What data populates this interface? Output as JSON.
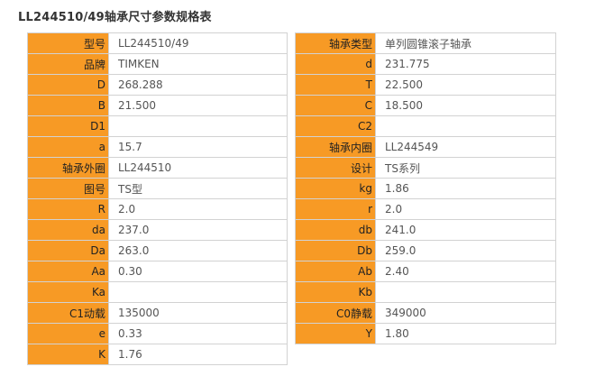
{
  "title": "LL244510/49轴承尺寸参数规格表",
  "colors": {
    "label_bg": "#f79a25",
    "value_bg": "#ffffff",
    "border": "#d2d2d2"
  },
  "left_table": [
    {
      "label": "型号",
      "value": "LL244510/49"
    },
    {
      "label": "品牌",
      "value": "TIMKEN"
    },
    {
      "label": "D",
      "value": "268.288"
    },
    {
      "label": "B",
      "value": "21.500"
    },
    {
      "label": "D1",
      "value": ""
    },
    {
      "label": "a",
      "value": "15.7"
    },
    {
      "label": "轴承外圈",
      "value": "LL244510"
    },
    {
      "label": "图号",
      "value": "TS型"
    },
    {
      "label": "R",
      "value": "2.0"
    },
    {
      "label": "da",
      "value": "237.0"
    },
    {
      "label": "Da",
      "value": "263.0"
    },
    {
      "label": "Aa",
      "value": "0.30"
    },
    {
      "label": "Ka",
      "value": ""
    },
    {
      "label": "C1动载",
      "value": "135000"
    },
    {
      "label": "e",
      "value": "0.33"
    },
    {
      "label": "K",
      "value": "1.76"
    }
  ],
  "right_table": [
    {
      "label": "轴承类型",
      "value": "单列圆锥滚子轴承"
    },
    {
      "label": "d",
      "value": "231.775"
    },
    {
      "label": "T",
      "value": "22.500"
    },
    {
      "label": "C",
      "value": "18.500"
    },
    {
      "label": "C2",
      "value": ""
    },
    {
      "label": "轴承内圈",
      "value": "LL244549"
    },
    {
      "label": "设计",
      "value": "TS系列"
    },
    {
      "label": "kg",
      "value": "1.86"
    },
    {
      "label": "r",
      "value": "2.0"
    },
    {
      "label": "db",
      "value": "241.0"
    },
    {
      "label": "Db",
      "value": "259.0"
    },
    {
      "label": "Ab",
      "value": "2.40"
    },
    {
      "label": "Kb",
      "value": ""
    },
    {
      "label": "C0静载",
      "value": "349000"
    },
    {
      "label": "Y",
      "value": "1.80"
    }
  ]
}
